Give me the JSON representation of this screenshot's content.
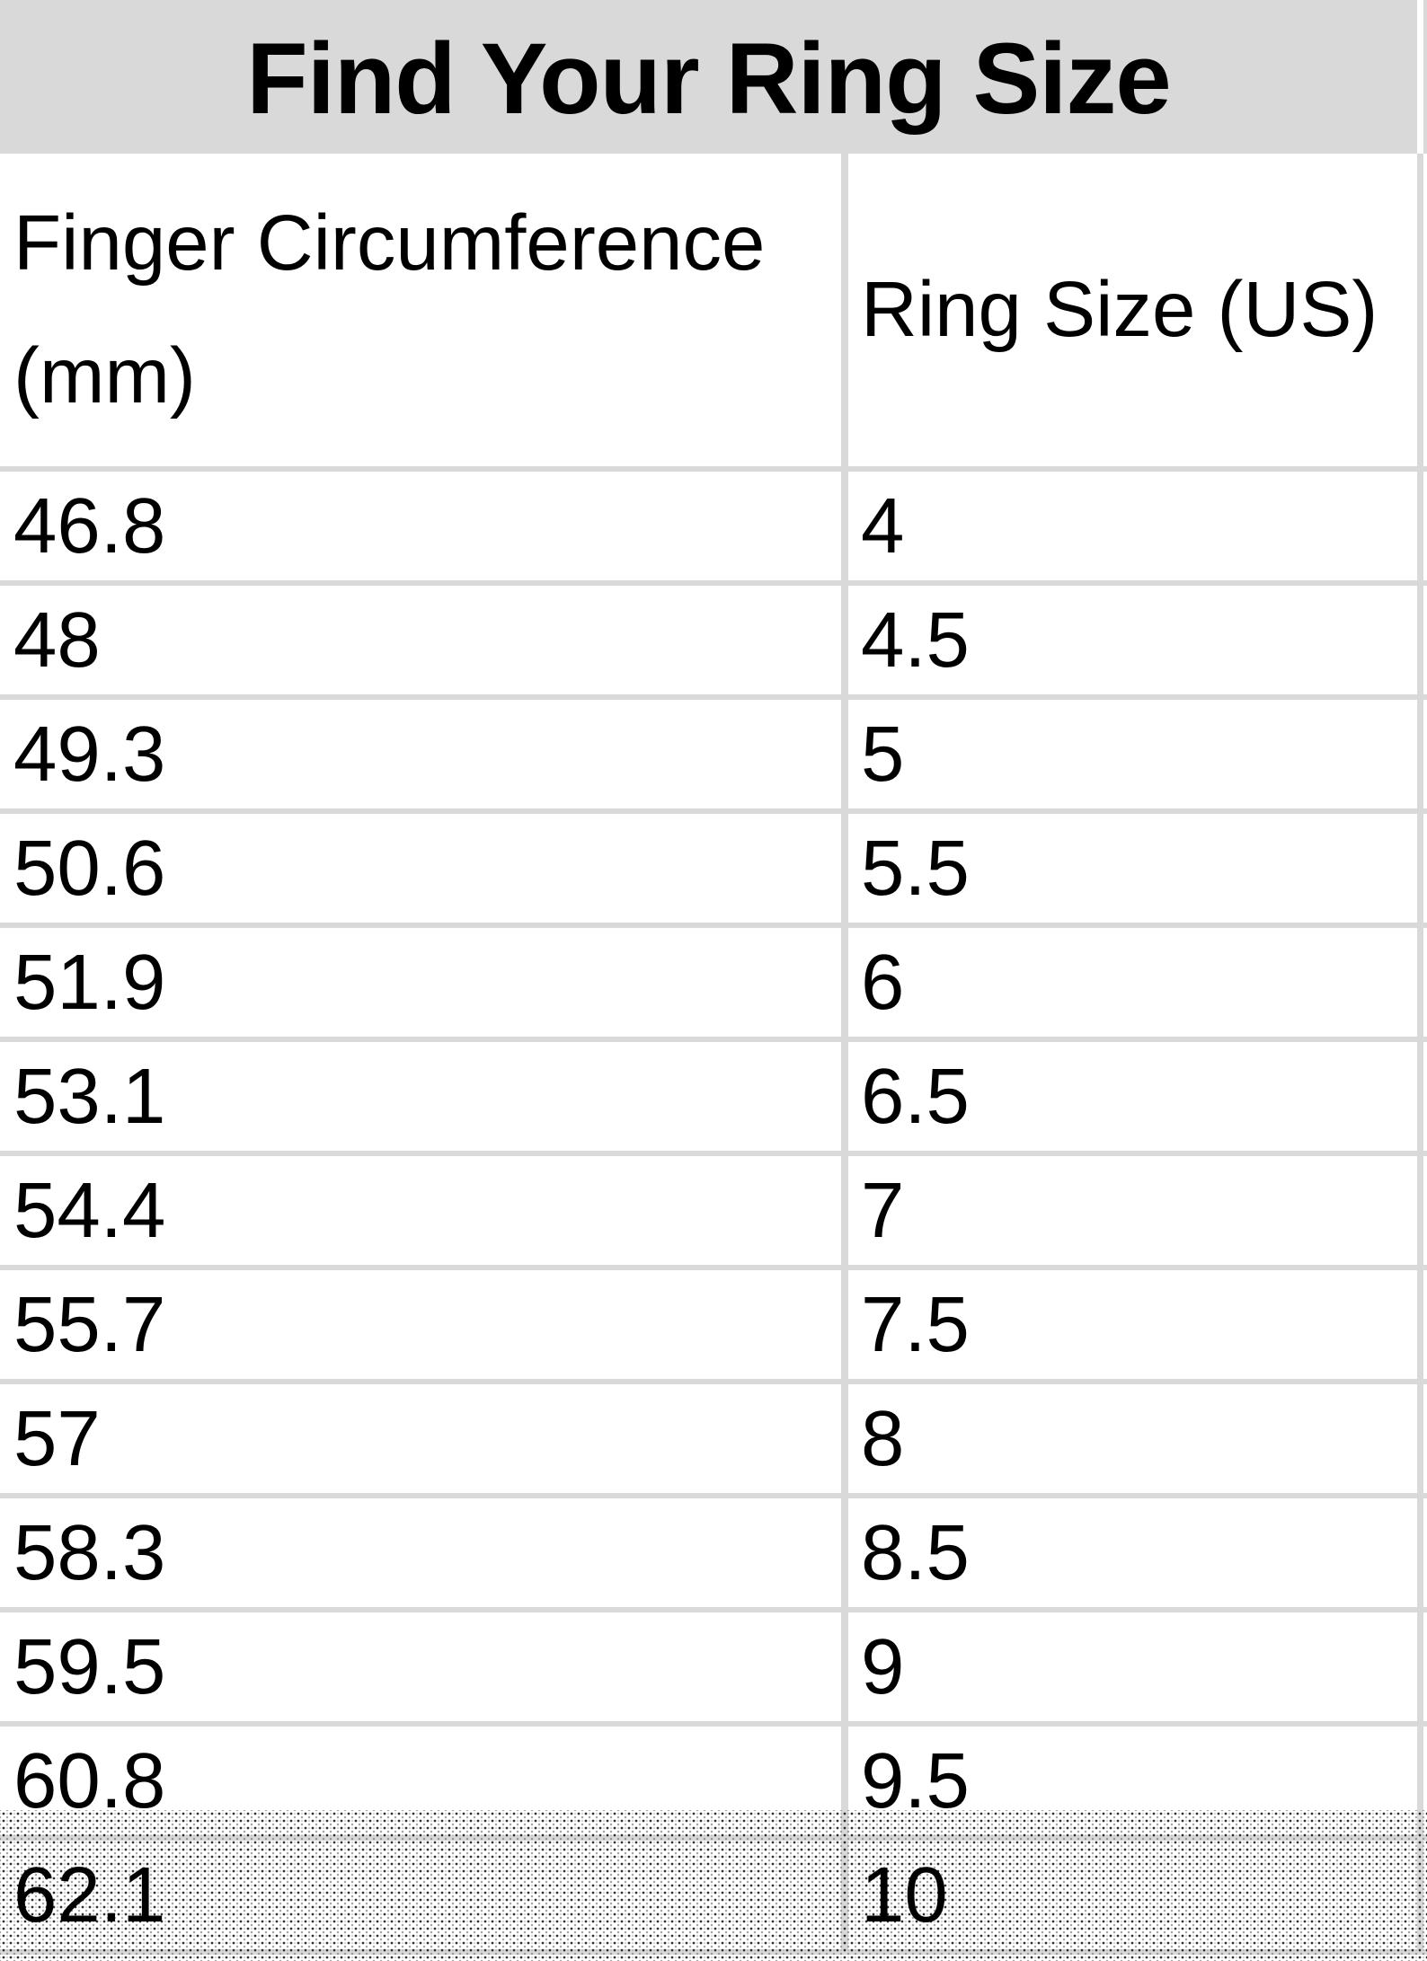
{
  "title": "Find Your Ring Size",
  "columns": [
    "Finger Circumference (mm)",
    "Ring Size (US)"
  ],
  "rows": [
    {
      "circumference_mm": "46.8",
      "ring_size_us": "4"
    },
    {
      "circumference_mm": "48",
      "ring_size_us": "4.5"
    },
    {
      "circumference_mm": "49.3",
      "ring_size_us": "5"
    },
    {
      "circumference_mm": "50.6",
      "ring_size_us": "5.5"
    },
    {
      "circumference_mm": "51.9",
      "ring_size_us": "6"
    },
    {
      "circumference_mm": "53.1",
      "ring_size_us": "6.5"
    },
    {
      "circumference_mm": "54.4",
      "ring_size_us": "7"
    },
    {
      "circumference_mm": "55.7",
      "ring_size_us": "7.5"
    },
    {
      "circumference_mm": "57",
      "ring_size_us": "8"
    },
    {
      "circumference_mm": "58.3",
      "ring_size_us": "8.5"
    },
    {
      "circumference_mm": "59.5",
      "ring_size_us": "9"
    },
    {
      "circumference_mm": "60.8",
      "ring_size_us": "9.5"
    },
    {
      "circumference_mm": "62.1",
      "ring_size_us": "10"
    }
  ],
  "selection": {
    "style": "dotted-stipple-overlay",
    "covers": "bottom region including row 62.1 / 10"
  },
  "colors": {
    "title_band": "#d9d9d9",
    "grid_line": "#d9d9d9",
    "text": "#000000",
    "background": "#ffffff"
  },
  "chart_data": {
    "type": "table",
    "title": "Find Your Ring Size",
    "columns": [
      "Finger Circumference (mm)",
      "Ring Size (US)"
    ],
    "rows": [
      [
        46.8,
        4
      ],
      [
        48,
        4.5
      ],
      [
        49.3,
        5
      ],
      [
        50.6,
        5.5
      ],
      [
        51.9,
        6
      ],
      [
        53.1,
        6.5
      ],
      [
        54.4,
        7
      ],
      [
        55.7,
        7.5
      ],
      [
        57,
        8
      ],
      [
        58.3,
        8.5
      ],
      [
        59.5,
        9
      ],
      [
        60.8,
        9.5
      ],
      [
        62.1,
        10
      ]
    ]
  }
}
